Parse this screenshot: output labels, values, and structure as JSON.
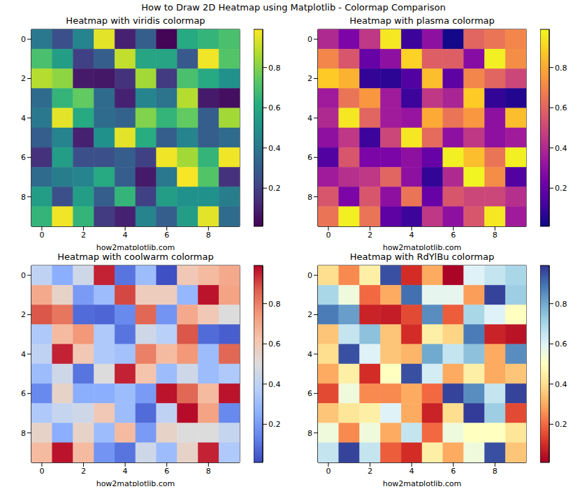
{
  "title": "How to Draw 2D Heatmap using Matplotlib - Colormap Comparison",
  "chart_data": [
    {
      "type": "heatmap",
      "title": "Heatmap with viridis colormap",
      "x_label": "how2matplotlib.com",
      "color": "viridis",
      "xlim": [
        -0.5,
        9.5
      ],
      "ylim": [
        9.5,
        -0.5
      ],
      "xticks": [
        0,
        2,
        4,
        6,
        8
      ],
      "yticks": [
        0,
        2,
        4,
        6,
        8
      ],
      "color_range": [
        0.01,
        0.99
      ],
      "color_ticks": [
        0.2,
        0.4,
        0.6,
        0.8
      ],
      "values": [
        [
          0.4,
          0.25,
          0.45,
          0.95,
          0.1,
          0.3,
          0.02,
          0.6,
          0.65,
          0.7
        ],
        [
          0.7,
          0.55,
          0.2,
          0.3,
          0.9,
          0.58,
          0.58,
          0.28,
          0.97,
          0.72
        ],
        [
          0.88,
          0.82,
          0.08,
          0.07,
          0.15,
          0.85,
          0.18,
          0.7,
          0.6,
          0.5
        ],
        [
          0.35,
          0.65,
          0.75,
          0.35,
          0.1,
          0.45,
          0.38,
          0.88,
          0.08,
          0.05
        ],
        [
          0.4,
          0.95,
          0.6,
          0.35,
          0.32,
          0.8,
          0.65,
          0.75,
          0.3,
          0.85
        ],
        [
          0.3,
          0.45,
          0.1,
          0.5,
          0.95,
          0.62,
          0.3,
          0.45,
          0.3,
          0.35
        ],
        [
          0.15,
          0.55,
          0.25,
          0.25,
          0.3,
          0.2,
          0.97,
          0.85,
          0.65,
          0.97
        ],
        [
          0.35,
          0.42,
          0.45,
          0.6,
          0.3,
          0.08,
          0.4,
          0.98,
          0.72,
          0.15
        ],
        [
          0.55,
          0.25,
          0.55,
          0.3,
          0.65,
          0.2,
          0.55,
          0.5,
          0.5,
          0.42
        ],
        [
          0.65,
          0.97,
          0.65,
          0.18,
          0.1,
          0.45,
          0.3,
          0.55,
          0.95,
          0.35
        ]
      ]
    },
    {
      "type": "heatmap",
      "title": "Heatmap with plasma colormap",
      "x_label": "how2matplotlib.com",
      "color": "plasma",
      "xlim": [
        -0.5,
        9.5
      ],
      "ylim": [
        9.5,
        -0.5
      ],
      "xticks": [
        0,
        2,
        4,
        6,
        8
      ],
      "yticks": [
        0,
        2,
        4,
        6,
        8
      ],
      "color_range": [
        0.01,
        0.99
      ],
      "color_ticks": [
        0.2,
        0.4,
        0.6,
        0.8
      ],
      "values": [
        [
          0.4,
          0.25,
          0.45,
          0.95,
          0.1,
          0.3,
          0.02,
          0.6,
          0.65,
          0.7
        ],
        [
          0.7,
          0.55,
          0.2,
          0.3,
          0.9,
          0.58,
          0.58,
          0.28,
          0.97,
          0.72
        ],
        [
          0.88,
          0.82,
          0.08,
          0.07,
          0.15,
          0.85,
          0.18,
          0.7,
          0.6,
          0.5
        ],
        [
          0.35,
          0.65,
          0.75,
          0.35,
          0.1,
          0.45,
          0.38,
          0.88,
          0.08,
          0.05
        ],
        [
          0.4,
          0.95,
          0.6,
          0.35,
          0.32,
          0.8,
          0.65,
          0.75,
          0.3,
          0.85
        ],
        [
          0.3,
          0.45,
          0.1,
          0.5,
          0.95,
          0.62,
          0.3,
          0.45,
          0.3,
          0.35
        ],
        [
          0.15,
          0.55,
          0.25,
          0.25,
          0.3,
          0.2,
          0.97,
          0.85,
          0.65,
          0.97
        ],
        [
          0.35,
          0.42,
          0.45,
          0.6,
          0.3,
          0.08,
          0.4,
          0.98,
          0.72,
          0.15
        ],
        [
          0.55,
          0.25,
          0.55,
          0.3,
          0.65,
          0.2,
          0.55,
          0.5,
          0.5,
          0.42
        ],
        [
          0.65,
          0.97,
          0.65,
          0.18,
          0.1,
          0.45,
          0.3,
          0.55,
          0.95,
          0.35
        ]
      ]
    },
    {
      "type": "heatmap",
      "title": "Heatmap with coolwarm colormap",
      "x_label": "how2matplotlib.com",
      "color": "coolwarm",
      "xlim": [
        -0.5,
        9.5
      ],
      "ylim": [
        9.5,
        -0.5
      ],
      "xticks": [
        0,
        2,
        4,
        6,
        8
      ],
      "yticks": [
        0,
        2,
        4,
        6,
        8
      ],
      "color_range": [
        0.01,
        0.99
      ],
      "color_ticks": [
        0.2,
        0.4,
        0.6,
        0.8
      ],
      "values": [
        [
          0.4,
          0.25,
          0.45,
          0.95,
          0.1,
          0.3,
          0.02,
          0.6,
          0.65,
          0.7
        ],
        [
          0.7,
          0.55,
          0.2,
          0.3,
          0.9,
          0.58,
          0.58,
          0.28,
          0.97,
          0.72
        ],
        [
          0.88,
          0.82,
          0.08,
          0.07,
          0.15,
          0.85,
          0.18,
          0.7,
          0.6,
          0.5
        ],
        [
          0.35,
          0.65,
          0.75,
          0.35,
          0.1,
          0.45,
          0.38,
          0.88,
          0.08,
          0.05
        ],
        [
          0.4,
          0.95,
          0.6,
          0.35,
          0.32,
          0.8,
          0.65,
          0.75,
          0.3,
          0.85
        ],
        [
          0.3,
          0.45,
          0.1,
          0.5,
          0.95,
          0.62,
          0.3,
          0.45,
          0.3,
          0.35
        ],
        [
          0.15,
          0.55,
          0.25,
          0.25,
          0.3,
          0.2,
          0.97,
          0.85,
          0.65,
          0.97
        ],
        [
          0.35,
          0.42,
          0.45,
          0.6,
          0.3,
          0.08,
          0.4,
          0.98,
          0.72,
          0.15
        ],
        [
          0.55,
          0.25,
          0.55,
          0.3,
          0.65,
          0.2,
          0.55,
          0.5,
          0.5,
          0.42
        ],
        [
          0.65,
          0.97,
          0.65,
          0.18,
          0.1,
          0.45,
          0.3,
          0.55,
          0.95,
          0.35
        ]
      ]
    },
    {
      "type": "heatmap",
      "title": "Heatmap with RdYlBu colormap",
      "x_label": "how2matplotlib.com",
      "color": "RdYlBu",
      "xlim": [
        -0.5,
        9.5
      ],
      "ylim": [
        9.5,
        -0.5
      ],
      "xticks": [
        0,
        2,
        4,
        6,
        8
      ],
      "yticks": [
        0,
        2,
        4,
        6,
        8
      ],
      "color_range": [
        0.01,
        0.99
      ],
      "color_ticks": [
        0.2,
        0.4,
        0.6,
        0.8
      ],
      "values": [
        [
          0.4,
          0.25,
          0.45,
          0.95,
          0.1,
          0.3,
          0.02,
          0.6,
          0.65,
          0.7
        ],
        [
          0.7,
          0.55,
          0.2,
          0.3,
          0.9,
          0.58,
          0.58,
          0.28,
          0.97,
          0.72
        ],
        [
          0.88,
          0.82,
          0.08,
          0.07,
          0.15,
          0.85,
          0.18,
          0.7,
          0.6,
          0.5
        ],
        [
          0.35,
          0.65,
          0.75,
          0.35,
          0.1,
          0.45,
          0.38,
          0.88,
          0.08,
          0.05
        ],
        [
          0.4,
          0.95,
          0.6,
          0.35,
          0.32,
          0.8,
          0.65,
          0.75,
          0.3,
          0.85
        ],
        [
          0.3,
          0.45,
          0.1,
          0.5,
          0.95,
          0.62,
          0.3,
          0.45,
          0.3,
          0.35
        ],
        [
          0.15,
          0.55,
          0.25,
          0.25,
          0.3,
          0.2,
          0.97,
          0.85,
          0.65,
          0.97
        ],
        [
          0.35,
          0.42,
          0.45,
          0.6,
          0.3,
          0.08,
          0.4,
          0.98,
          0.72,
          0.15
        ],
        [
          0.55,
          0.25,
          0.55,
          0.3,
          0.65,
          0.2,
          0.55,
          0.5,
          0.5,
          0.42
        ],
        [
          0.65,
          0.97,
          0.65,
          0.18,
          0.1,
          0.45,
          0.3,
          0.55,
          0.95,
          0.35
        ]
      ]
    }
  ]
}
